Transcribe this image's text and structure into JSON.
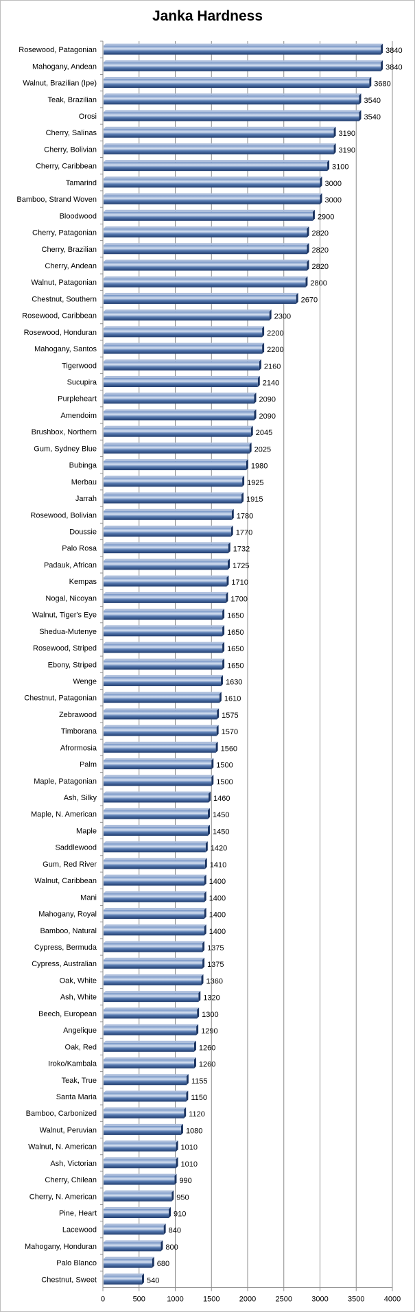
{
  "chart_data": {
    "type": "bar",
    "orientation": "horizontal",
    "title": "Janka Hardness",
    "xlim": [
      0,
      4000
    ],
    "xticks": [
      0,
      500,
      1000,
      1500,
      2000,
      2500,
      3000,
      3500,
      4000
    ],
    "grid": "vertical major gridlines",
    "legend": "none",
    "bar_color": "#2e4f86",
    "bar_highlight": "#d7e1f1",
    "categories": [
      "Rosewood, Patagonian",
      "Mahogany, Andean",
      "Walnut, Brazilian (Ipe)",
      "Teak, Brazilian",
      "Orosi",
      "Cherry, Salinas",
      "Cherry, Bolivian",
      "Cherry, Caribbean",
      "Tamarind",
      "Bamboo, Strand Woven",
      "Bloodwood",
      "Cherry, Patagonian",
      "Cherry, Brazilian",
      "Cherry, Andean",
      "Walnut, Patagonian",
      "Chestnut, Southern",
      "Rosewood, Caribbean",
      "Rosewood, Honduran",
      "Mahogany, Santos",
      "Tigerwood",
      "Sucupira",
      "Purpleheart",
      "Amendoim",
      "Brushbox, Northern",
      "Gum, Sydney Blue",
      "Bubinga",
      "Merbau",
      "Jarrah",
      "Rosewood, Bolivian",
      "Doussie",
      "Palo Rosa",
      "Padauk, African",
      "Kempas",
      "Nogal, Nicoyan",
      "Walnut, Tiger's Eye",
      "Shedua-Mutenye",
      "Rosewood, Striped",
      "Ebony, Striped",
      "Wenge",
      "Chestnut, Patagonian",
      "Zebrawood",
      "Timborana",
      "Afrormosia",
      "Palm",
      "Maple, Patagonian",
      "Ash, Silky",
      "Maple, N. American",
      "Maple",
      "Saddlewood",
      "Gum, Red River",
      "Walnut, Caribbean",
      "Mani",
      "Mahogany, Royal",
      "Bamboo, Natural",
      "Cypress, Bermuda",
      "Cypress, Australian",
      "Oak, White",
      "Ash, White",
      "Beech, European",
      "Angelique",
      "Oak, Red",
      "Iroko/Kambala",
      "Teak, True",
      "Santa Maria",
      "Bamboo, Carbonized",
      "Walnut, Peruvian",
      "Walnut, N. American",
      "Ash, Victorian",
      "Cherry, Chilean",
      "Cherry, N. American",
      "Pine, Heart",
      "Lacewood",
      "Mahogany, Honduran",
      "Palo Blanco",
      "Chestnut, Sweet"
    ],
    "values": [
      3840,
      3840,
      3680,
      3540,
      3540,
      3190,
      3190,
      3100,
      3000,
      3000,
      2900,
      2820,
      2820,
      2820,
      2800,
      2670,
      2300,
      2200,
      2200,
      2160,
      2140,
      2090,
      2090,
      2045,
      2025,
      1980,
      1925,
      1915,
      1780,
      1770,
      1732,
      1725,
      1710,
      1700,
      1650,
      1650,
      1650,
      1650,
      1630,
      1610,
      1575,
      1570,
      1560,
      1500,
      1500,
      1460,
      1450,
      1450,
      1420,
      1410,
      1400,
      1400,
      1400,
      1400,
      1375,
      1375,
      1360,
      1320,
      1300,
      1290,
      1260,
      1260,
      1155,
      1150,
      1120,
      1080,
      1010,
      1010,
      990,
      950,
      910,
      840,
      800,
      680,
      540
    ]
  }
}
